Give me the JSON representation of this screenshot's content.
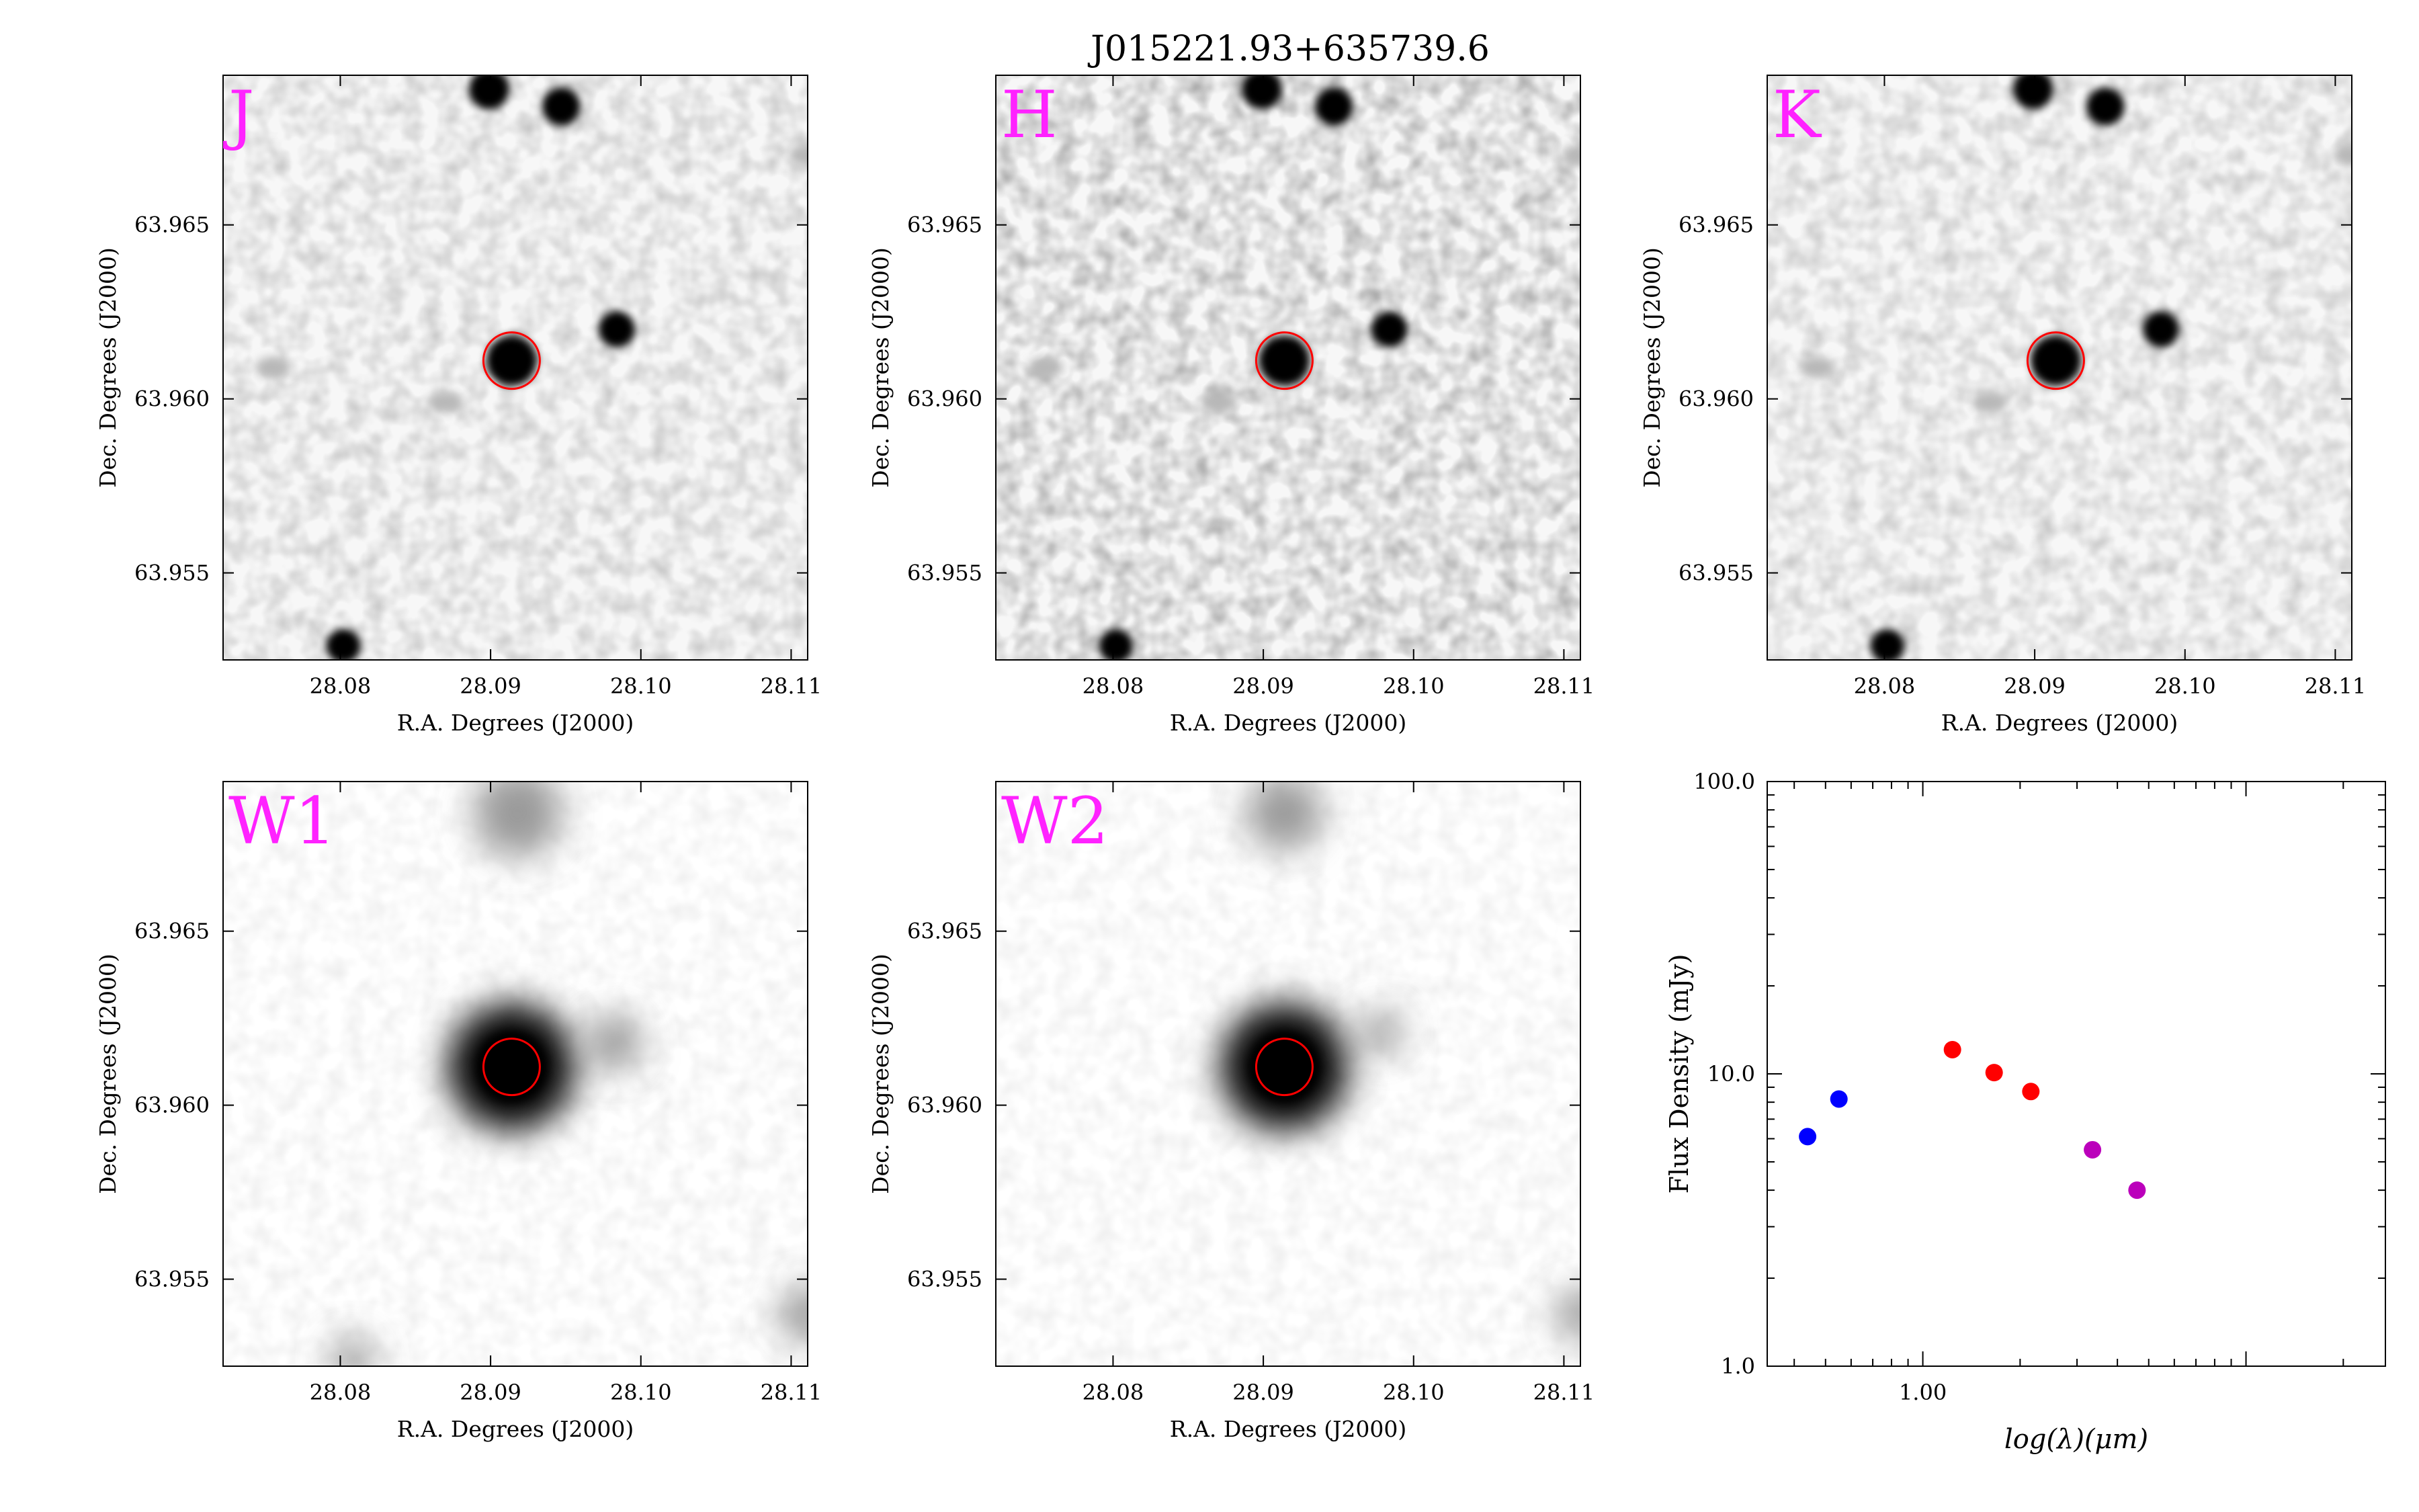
{
  "figure": {
    "title": "J015221.93+635739.6"
  },
  "panels": [
    {
      "band": "J",
      "kind": "2mass",
      "ra_range": [
        28.0722,
        28.1111
      ],
      "dec_range": [
        63.9525,
        63.9693
      ],
      "x_ticks": [
        "28.08",
        "28.09",
        "28.10",
        "28.11"
      ],
      "y_ticks": [
        "63.955",
        "63.960",
        "63.965"
      ],
      "x_tick_values": [
        28.08,
        28.09,
        28.1,
        28.11
      ],
      "y_tick_values": [
        63.955,
        63.96,
        63.965
      ],
      "xlabel": "R.A. Degrees (J2000)",
      "ylabel": "Dec. Degrees (J2000)",
      "target": [
        28.0914,
        63.9611
      ],
      "sources": [
        {
          "ra": 28.0899,
          "dec": 63.9689,
          "size": 1.0
        },
        {
          "ra": 28.0947,
          "dec": 63.9684,
          "size": 0.95
        },
        {
          "ra": 28.0984,
          "dec": 63.962,
          "size": 0.9
        },
        {
          "ra": 28.0914,
          "dec": 63.9611,
          "size": 1.25
        },
        {
          "ra": 28.0802,
          "dec": 63.9529,
          "size": 0.85
        }
      ],
      "faint": [
        {
          "ra": 28.0755,
          "dec": 63.9609
        },
        {
          "ra": 28.087,
          "dec": 63.9599
        },
        {
          "ra": 28.111,
          "dec": 63.967
        }
      ]
    },
    {
      "band": "H",
      "kind": "2mass",
      "ra_range": [
        28.0722,
        28.1111
      ],
      "dec_range": [
        63.9525,
        63.9693
      ],
      "x_ticks": [
        "28.08",
        "28.09",
        "28.10",
        "28.11"
      ],
      "y_ticks": [
        "63.955",
        "63.960",
        "63.965"
      ],
      "x_tick_values": [
        28.08,
        28.09,
        28.1,
        28.11
      ],
      "y_tick_values": [
        63.955,
        63.96,
        63.965
      ],
      "xlabel": "R.A. Degrees (J2000)",
      "ylabel": "Dec. Degrees (J2000)",
      "target": [
        28.0914,
        63.9611
      ],
      "sources": [
        {
          "ra": 28.0899,
          "dec": 63.9689,
          "size": 1.0
        },
        {
          "ra": 28.0947,
          "dec": 63.9684,
          "size": 0.95
        },
        {
          "ra": 28.0984,
          "dec": 63.962,
          "size": 0.9
        },
        {
          "ra": 28.0914,
          "dec": 63.9611,
          "size": 1.25
        },
        {
          "ra": 28.0802,
          "dec": 63.9529,
          "size": 0.85
        }
      ],
      "faint": [
        {
          "ra": 28.0755,
          "dec": 63.9609
        },
        {
          "ra": 28.087,
          "dec": 63.9599
        },
        {
          "ra": 28.111,
          "dec": 63.967
        }
      ]
    },
    {
      "band": "K",
      "kind": "2mass",
      "ra_range": [
        28.0722,
        28.1111
      ],
      "dec_range": [
        63.9525,
        63.9693
      ],
      "x_ticks": [
        "28.08",
        "28.09",
        "28.10",
        "28.11"
      ],
      "y_ticks": [
        "63.955",
        "63.960",
        "63.965"
      ],
      "x_tick_values": [
        28.08,
        28.09,
        28.1,
        28.11
      ],
      "y_tick_values": [
        63.955,
        63.96,
        63.965
      ],
      "xlabel": "R.A. Degrees (J2000)",
      "ylabel": "Dec. Degrees (J2000)",
      "target": [
        28.0914,
        63.9611
      ],
      "sources": [
        {
          "ra": 28.0899,
          "dec": 63.9689,
          "size": 1.0
        },
        {
          "ra": 28.0947,
          "dec": 63.9684,
          "size": 0.95
        },
        {
          "ra": 28.0984,
          "dec": 63.962,
          "size": 0.9
        },
        {
          "ra": 28.0914,
          "dec": 63.9611,
          "size": 1.25
        },
        {
          "ra": 28.0802,
          "dec": 63.9529,
          "size": 0.85
        }
      ],
      "faint": [
        {
          "ra": 28.0755,
          "dec": 63.9609
        },
        {
          "ra": 28.087,
          "dec": 63.9599
        },
        {
          "ra": 28.111,
          "dec": 63.967
        }
      ]
    },
    {
      "band": "W1",
      "kind": "wise",
      "ra_range": [
        28.0722,
        28.1111
      ],
      "dec_range": [
        63.9525,
        63.9693
      ],
      "x_ticks": [
        "28.08",
        "28.09",
        "28.10",
        "28.11"
      ],
      "y_ticks": [
        "63.955",
        "63.960",
        "63.965"
      ],
      "x_tick_values": [
        28.08,
        28.09,
        28.1,
        28.11
      ],
      "y_tick_values": [
        63.955,
        63.96,
        63.965
      ],
      "xlabel": "R.A. Degrees (J2000)",
      "ylabel": "Dec. Degrees (J2000)",
      "target": [
        28.0914,
        63.9611
      ],
      "sources": [
        {
          "ra": 28.0914,
          "dec": 63.9611,
          "size": 1.0
        },
        {
          "ra": 28.0982,
          "dec": 63.9618,
          "size": 0.45
        },
        {
          "ra": 28.0918,
          "dec": 63.9684,
          "size": 0.7
        },
        {
          "ra": 28.1111,
          "dec": 63.954,
          "size": 0.45
        },
        {
          "ra": 28.0808,
          "dec": 63.9527,
          "size": 0.35
        }
      ],
      "faint": []
    },
    {
      "band": "W2",
      "kind": "wise",
      "ra_range": [
        28.0722,
        28.1111
      ],
      "dec_range": [
        63.9525,
        63.9693
      ],
      "x_ticks": [
        "28.08",
        "28.09",
        "28.10",
        "28.11"
      ],
      "y_ticks": [
        "63.955",
        "63.960",
        "63.965"
      ],
      "x_tick_values": [
        28.08,
        28.09,
        28.1,
        28.11
      ],
      "y_tick_values": [
        63.955,
        63.96,
        63.965
      ],
      "xlabel": "R.A. Degrees (J2000)",
      "ylabel": "Dec. Degrees (J2000)",
      "target": [
        28.0914,
        63.9611
      ],
      "sources": [
        {
          "ra": 28.0914,
          "dec": 63.9611,
          "size": 1.0
        },
        {
          "ra": 28.0978,
          "dec": 63.9621,
          "size": 0.35
        },
        {
          "ra": 28.0914,
          "dec": 63.9684,
          "size": 0.6
        },
        {
          "ra": 28.1111,
          "dec": 63.954,
          "size": 0.4
        }
      ],
      "faint": []
    }
  ],
  "chart_data": {
    "type": "scatter",
    "xlabel": "log(λ)(μm)",
    "ylabel": "Flux Density (mJy)",
    "xscale": "log",
    "yscale": "log",
    "xlim": [
      0.33,
      27
    ],
    "ylim": [
      1.0,
      100.0
    ],
    "x_tick_labels": [
      {
        "value": 1.0,
        "label": "1.00"
      }
    ],
    "y_tick_labels": [
      {
        "value": 1.0,
        "label": "1.0"
      },
      {
        "value": 10.0,
        "label": "10.0"
      },
      {
        "value": 100.0,
        "label": "100.0"
      }
    ],
    "grid": false,
    "points": [
      {
        "x": 0.44,
        "y": 6.1,
        "color": "#0000ff"
      },
      {
        "x": 0.55,
        "y": 8.2,
        "color": "#0000ff"
      },
      {
        "x": 1.235,
        "y": 12.1,
        "color": "#ff0000"
      },
      {
        "x": 1.662,
        "y": 10.1,
        "color": "#ff0000"
      },
      {
        "x": 2.159,
        "y": 8.7,
        "color": "#ff0000"
      },
      {
        "x": 3.35,
        "y": 5.5,
        "color": "#bb00bb"
      },
      {
        "x": 4.6,
        "y": 4.0,
        "color": "#bb00bb"
      }
    ]
  }
}
